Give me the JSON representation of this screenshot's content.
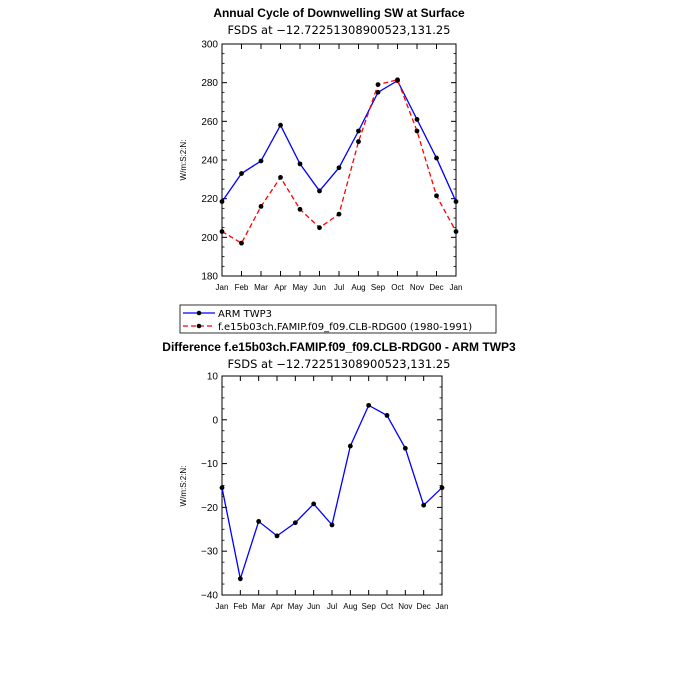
{
  "chart_data": [
    {
      "type": "line",
      "title": "Annual Cycle of Downwelling SW at Surface",
      "subtitle": "FSDS at −12.72251308900523,131.25",
      "ylabel": "W/m:S:2:N:",
      "xlabel": "",
      "ylim": [
        180,
        300
      ],
      "yticks": [
        180,
        200,
        220,
        240,
        260,
        280,
        300
      ],
      "categories": [
        "Jan",
        "Feb",
        "Mar",
        "Apr",
        "May",
        "Jun",
        "Jul",
        "Aug",
        "Sep",
        "Oct",
        "Nov",
        "Dec",
        "Jan"
      ],
      "series": [
        {
          "name": "ARM TWP3",
          "color": "#0000ff",
          "dash": "solid",
          "values": [
            218.5,
            233,
            239.5,
            258,
            238,
            224,
            236,
            255,
            275,
            281,
            261,
            241,
            218.5
          ]
        },
        {
          "name": "f.e15b03ch.FAMIP.f09_f09.CLB-RDG00 (1980-1991)",
          "color": "#ff0000",
          "dash": "dashed",
          "values": [
            203,
            197,
            216,
            231,
            214.5,
            205,
            212,
            249.5,
            279,
            281.5,
            255,
            221.5,
            203
          ]
        }
      ],
      "legend_position": "below"
    },
    {
      "type": "line",
      "title": "Difference f.e15b03ch.FAMIP.f09_f09.CLB-RDG00 - ARM TWP3",
      "subtitle": "FSDS at −12.72251308900523,131.25",
      "ylabel": "W/m:S:2:N:",
      "xlabel": "",
      "ylim": [
        -40,
        10
      ],
      "yticks": [
        -40,
        -30,
        -20,
        -10,
        0,
        10
      ],
      "categories": [
        "Jan",
        "Feb",
        "Mar",
        "Apr",
        "May",
        "Jun",
        "Jul",
        "Aug",
        "Sep",
        "Oct",
        "Nov",
        "Dec",
        "Jan"
      ],
      "series": [
        {
          "color": "#0000ff",
          "dash": "solid",
          "values": [
            -15.5,
            -36.3,
            -23.2,
            -26.5,
            -23.5,
            -19.2,
            -24,
            -6,
            3.3,
            1,
            -6.5,
            -19.5,
            -15.5
          ]
        }
      ]
    }
  ]
}
